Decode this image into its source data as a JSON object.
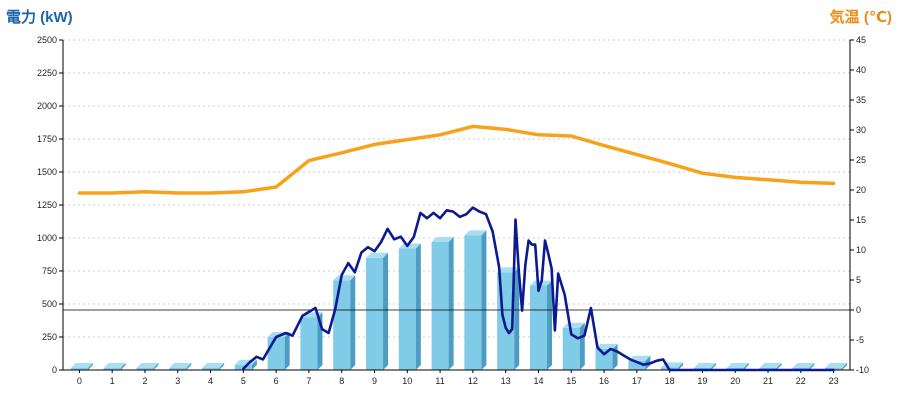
{
  "chart_data": {
    "type": "bar",
    "left_axis_label": "電力 (kW)",
    "right_axis_label": "気温 (℃)",
    "x_categories": [
      "0",
      "1",
      "2",
      "3",
      "4",
      "5",
      "6",
      "7",
      "8",
      "9",
      "10",
      "11",
      "12",
      "13",
      "14",
      "15",
      "16",
      "17",
      "18",
      "19",
      "20",
      "21",
      "22",
      "23"
    ],
    "y_left_ticks": [
      "0",
      "250",
      "500",
      "750",
      "1000",
      "1250",
      "1500",
      "1750",
      "2000",
      "2250",
      "2500"
    ],
    "y_right_ticks": [
      "-10",
      "-5",
      "0",
      "5",
      "10",
      "15",
      "20",
      "25",
      "30",
      "35",
      "40",
      "45"
    ],
    "y_left_range": [
      0,
      2500
    ],
    "y_right_range": [
      -10,
      45
    ],
    "grid": true,
    "colors": {
      "bars": "#7fcbe8",
      "power_line": "#0c1a8f",
      "temperature_line": "#f7a21b",
      "left_title": "#1c64a8",
      "right_title": "#f08a16"
    },
    "series": [
      {
        "type": "bar",
        "axis": "left",
        "values": [
          0,
          0,
          0,
          0,
          0,
          40,
          250,
          400,
          680,
          850,
          920,
          970,
          1020,
          740,
          640,
          320,
          160,
          70,
          20,
          0,
          0,
          0,
          0,
          0
        ]
      },
      {
        "type": "line",
        "axis": "left",
        "x": [
          5.0,
          5.2,
          5.4,
          5.6,
          6.0,
          6.3,
          6.5,
          6.8,
          7.0,
          7.2,
          7.4,
          7.6,
          7.8,
          8.0,
          8.2,
          8.4,
          8.6,
          8.8,
          9.0,
          9.2,
          9.4,
          9.6,
          9.8,
          10.0,
          10.2,
          10.4,
          10.6,
          10.8,
          11.0,
          11.2,
          11.4,
          11.6,
          11.8,
          12.0,
          12.2,
          12.4,
          12.6,
          12.8,
          12.9,
          13.0,
          13.1,
          13.2,
          13.3,
          13.4,
          13.5,
          13.6,
          13.7,
          13.8,
          13.9,
          14.0,
          14.1,
          14.2,
          14.3,
          14.4,
          14.5,
          14.6,
          14.8,
          15.0,
          15.2,
          15.4,
          15.6,
          15.8,
          16.0,
          16.2,
          16.4,
          16.6,
          16.8,
          17.0,
          17.2,
          17.4,
          17.6,
          17.8,
          18.0,
          18.5,
          19,
          20,
          21,
          22,
          23
        ],
        "y": [
          10,
          60,
          100,
          80,
          250,
          280,
          260,
          410,
          440,
          470,
          310,
          280,
          460,
          720,
          810,
          740,
          890,
          930,
          900,
          970,
          1070,
          990,
          1010,
          940,
          1010,
          1190,
          1150,
          1190,
          1150,
          1210,
          1200,
          1160,
          1180,
          1230,
          1200,
          1180,
          1050,
          780,
          420,
          320,
          280,
          310,
          1140,
          750,
          450,
          800,
          980,
          950,
          950,
          600,
          680,
          980,
          880,
          770,
          300,
          730,
          570,
          270,
          240,
          260,
          470,
          170,
          120,
          160,
          140,
          110,
          80,
          60,
          40,
          50,
          70,
          80,
          0,
          0,
          0,
          0,
          0,
          0,
          0
        ]
      },
      {
        "type": "line",
        "axis": "right",
        "x": [
          0,
          1,
          2,
          3,
          4,
          5,
          6,
          7,
          8,
          9,
          10,
          11,
          12,
          13,
          14,
          15,
          16,
          17,
          18,
          19,
          20,
          21,
          22,
          23
        ],
        "y": [
          19.5,
          19.5,
          19.7,
          19.5,
          19.5,
          19.7,
          20.5,
          24.9,
          26.2,
          27.6,
          28.4,
          29.2,
          30.6,
          30.1,
          29.2,
          29.0,
          27.4,
          25.9,
          24.4,
          22.8,
          22.1,
          21.7,
          21.3,
          21.1
        ]
      }
    ]
  }
}
